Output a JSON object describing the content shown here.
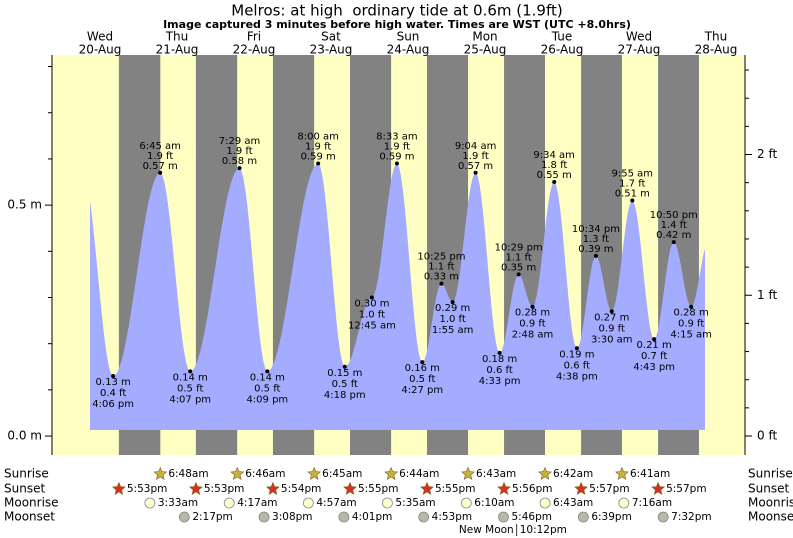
{
  "chart_data": {
    "type": "area",
    "title": "Melros: at high  ordinary tide at 0.6m (1.9ft)",
    "subtitle": "Image captured 3 minutes before high water. Times are WST (UTC +8.0hrs)",
    "ylim": [
      -0.041,
      0.825
    ],
    "yticks": [
      {
        "value": 0,
        "label": "0.0 m"
      },
      {
        "value": 0.5,
        "label": "0.5 m"
      }
    ],
    "yminorticks": [
      0.1,
      0.2,
      0.3,
      0.4,
      0.6,
      0.7,
      0.8
    ],
    "y2lim": [
      -0.135,
      2.707
    ],
    "y2ticks": [
      {
        "value": 0,
        "label": "0 ft"
      },
      {
        "value": 1,
        "label": "1 ft"
      },
      {
        "value": 2,
        "label": "2 ft"
      }
    ],
    "y2minorticks": [
      0.2,
      0.4,
      0.6,
      0.8,
      1.2,
      1.4,
      1.6,
      1.8,
      2.2,
      2.4,
      2.6
    ],
    "colors": {
      "area": "#a4acff",
      "day": "#ffffc4",
      "night": "#828282",
      "date": "#e00000",
      "sunrise": "#c8b040",
      "sunset": "#d83020",
      "moonrise": "#ffffd0",
      "moonset": "#b8b8a8"
    },
    "row_labels": [
      "Sunrise",
      "Sunset",
      "Moonrise",
      "Moonset"
    ],
    "days": [
      {
        "weekday": "Wed",
        "date": "20-Aug",
        "sunrise": null,
        "sunset": "5:53pm",
        "moonrise": null,
        "moonset": null,
        "tides": [
          {
            "time": "4:06 pm",
            "m": 0.13,
            "m_label": "0.13 m",
            "ft_label": "0.4 ft"
          }
        ]
      },
      {
        "weekday": "Thu",
        "date": "21-Aug",
        "sunrise": "6:48am",
        "sunset": "5:53pm",
        "moonrise": "3:33am",
        "moonset": "2:17pm",
        "tides": [
          {
            "time": "6:45 am",
            "m": 0.57,
            "m_label": "0.57 m",
            "ft_label": "1.9 ft"
          },
          {
            "time": "4:07 pm",
            "m": 0.14,
            "m_label": "0.14 m",
            "ft_label": "0.5 ft"
          }
        ]
      },
      {
        "weekday": "Fri",
        "date": "22-Aug",
        "sunrise": "6:46am",
        "sunset": "5:54pm",
        "moonrise": "4:17am",
        "moonset": "3:08pm",
        "tides": [
          {
            "time": "7:29 am",
            "m": 0.58,
            "m_label": "0.58 m",
            "ft_label": "1.9 ft"
          },
          {
            "time": "4:09 pm",
            "m": 0.14,
            "m_label": "0.14 m",
            "ft_label": "0.5 ft"
          }
        ]
      },
      {
        "weekday": "Sat",
        "date": "23-Aug",
        "sunrise": "6:45am",
        "sunset": "5:55pm",
        "moonrise": "4:57am",
        "moonset": "4:01pm",
        "tides": [
          {
            "time": "8:00 am",
            "m": 0.59,
            "m_label": "0.59 m",
            "ft_label": "1.9 ft"
          },
          {
            "time": "4:18 pm",
            "m": 0.15,
            "m_label": "0.15 m",
            "ft_label": "0.5 ft"
          }
        ]
      },
      {
        "weekday": "Sun",
        "date": "24-Aug",
        "sunrise": "6:44am",
        "sunset": "5:55pm",
        "moonrise": "5:35am",
        "moonset": "4:53pm",
        "tides": [
          {
            "time": "12:45 am",
            "m": 0.3,
            "m_label": "0.30 m",
            "ft_label": "1.0 ft"
          },
          {
            "time": "8:33 am",
            "m": 0.59,
            "m_label": "0.59 m",
            "ft_label": "1.9 ft"
          },
          {
            "time": "4:27 pm",
            "m": 0.16,
            "m_label": "0.16 m",
            "ft_label": "0.5 ft"
          },
          {
            "time": "10:25 pm",
            "m": 0.33,
            "m_label": "0.33 m",
            "ft_label": "1.1 ft"
          }
        ]
      },
      {
        "weekday": "Mon",
        "date": "25-Aug",
        "sunrise": "6:43am",
        "sunset": "5:56pm",
        "moonrise": "6:10am",
        "moonset": "5:46pm",
        "moon_phase": "New Moon",
        "moon_phase_time": "10:12pm",
        "tides": [
          {
            "time": "1:55 am",
            "m": 0.29,
            "m_label": "0.29 m",
            "ft_label": "1.0 ft"
          },
          {
            "time": "9:04 am",
            "m": 0.57,
            "m_label": "0.57 m",
            "ft_label": "1.9 ft"
          },
          {
            "time": "4:33 pm",
            "m": 0.18,
            "m_label": "0.18 m",
            "ft_label": "0.6 ft"
          },
          {
            "time": "10:29 pm",
            "m": 0.35,
            "m_label": "0.35 m",
            "ft_label": "1.1 ft"
          }
        ]
      },
      {
        "weekday": "Tue",
        "date": "26-Aug",
        "sunrise": "6:42am",
        "sunset": "5:57pm",
        "moonrise": "6:43am",
        "moonset": "6:39pm",
        "tides": [
          {
            "time": "2:48 am",
            "m": 0.28,
            "m_label": "0.28 m",
            "ft_label": "0.9 ft"
          },
          {
            "time": "9:34 am",
            "m": 0.55,
            "m_label": "0.55 m",
            "ft_label": "1.8 ft"
          },
          {
            "time": "4:38 pm",
            "m": 0.19,
            "m_label": "0.19 m",
            "ft_label": "0.6 ft"
          },
          {
            "time": "10:34 pm",
            "m": 0.39,
            "m_label": "0.39 m",
            "ft_label": "1.3 ft"
          }
        ]
      },
      {
        "weekday": "Wed",
        "date": "27-Aug",
        "sunrise": "6:41am",
        "sunset": "5:57pm",
        "moonrise": "7:16am",
        "moonset": "7:32pm",
        "tides": [
          {
            "time": "3:30 am",
            "m": 0.27,
            "m_label": "0.27 m",
            "ft_label": "0.9 ft"
          },
          {
            "time": "9:55 am",
            "m": 0.51,
            "m_label": "0.51 m",
            "ft_label": "1.7 ft"
          },
          {
            "time": "4:43 pm",
            "m": 0.21,
            "m_label": "0.21 m",
            "ft_label": "0.7 ft"
          },
          {
            "time": "10:50 pm",
            "m": 0.42,
            "m_label": "0.42 m",
            "ft_label": "1.4 ft"
          }
        ]
      },
      {
        "weekday": "Thu",
        "date": "28-Aug",
        "sunrise": null,
        "sunset": null,
        "moonrise": null,
        "moonset": null,
        "tides": [
          {
            "time": "4:15 am",
            "m": 0.28,
            "m_label": "0.28 m",
            "ft_label": "0.9 ft"
          }
        ]
      }
    ]
  }
}
